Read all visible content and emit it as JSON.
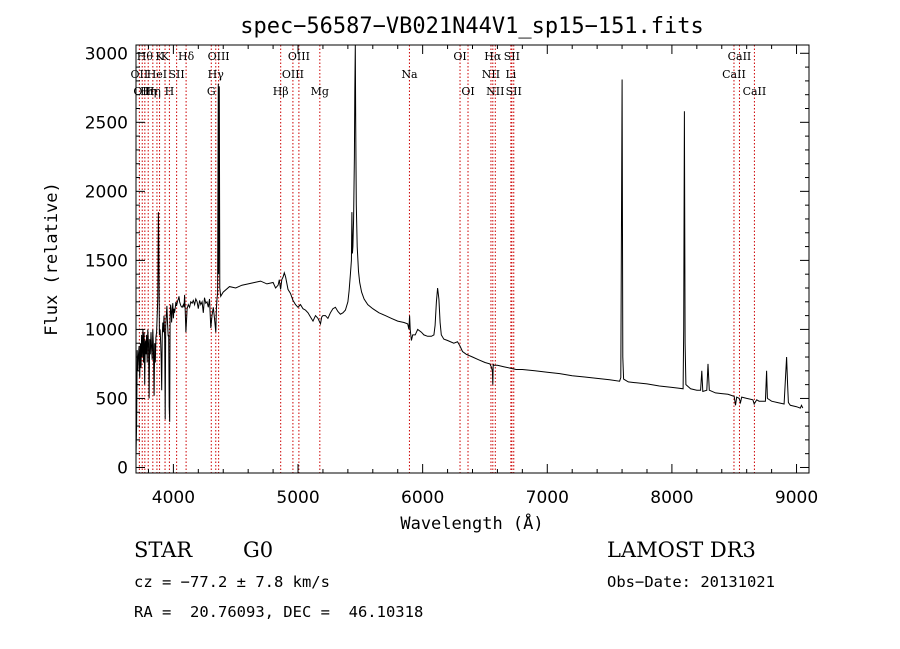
{
  "chart_data": {
    "type": "line",
    "title": "spec−56587−VB021N44V1_sp15−151.fits",
    "xlabel": "Wavelength (Å)",
    "ylabel": "Flux (relative)",
    "xlim": [
      3700,
      9100
    ],
    "ylim": [
      -40,
      3060
    ],
    "xticks": [
      4000,
      5000,
      6000,
      7000,
      8000,
      9000
    ],
    "yticks": [
      0,
      500,
      1000,
      1500,
      2000,
      2500,
      3000
    ],
    "grid": false,
    "series": [
      {
        "values": [
          [
            3700,
            80
          ],
          [
            3705,
            300
          ],
          [
            3710,
            850
          ],
          [
            3715,
            700
          ],
          [
            3720,
            820
          ],
          [
            3725,
            880
          ],
          [
            3730,
            650
          ],
          [
            3735,
            900
          ],
          [
            3740,
            720
          ],
          [
            3745,
            960
          ],
          [
            3750,
            800
          ],
          [
            3755,
            1000
          ],
          [
            3760,
            760
          ],
          [
            3765,
            980
          ],
          [
            3770,
            600
          ],
          [
            3775,
            920
          ],
          [
            3780,
            820
          ],
          [
            3785,
            960
          ],
          [
            3790,
            760
          ],
          [
            3795,
            1000
          ],
          [
            3800,
            900
          ],
          [
            3805,
            500
          ],
          [
            3810,
            930
          ],
          [
            3815,
            820
          ],
          [
            3820,
            980
          ],
          [
            3825,
            860
          ],
          [
            3830,
            780
          ],
          [
            3835,
            1000
          ],
          [
            3840,
            880
          ],
          [
            3845,
            520
          ],
          [
            3850,
            900
          ],
          [
            3855,
            760
          ],
          [
            3860,
            940
          ],
          [
            3865,
            980
          ],
          [
            3870,
            1100
          ],
          [
            3875,
            1230
          ],
          [
            3880,
            1850
          ],
          [
            3884,
            1500
          ],
          [
            3888,
            960
          ],
          [
            3893,
            1000
          ],
          [
            3898,
            900
          ],
          [
            3902,
            780
          ],
          [
            3906,
            560
          ],
          [
            3910,
            940
          ],
          [
            3915,
            1050
          ],
          [
            3920,
            980
          ],
          [
            3925,
            1100
          ],
          [
            3930,
            930
          ],
          [
            3934,
            350
          ],
          [
            3938,
            1020
          ],
          [
            3943,
            1100
          ],
          [
            3948,
            1170
          ],
          [
            3953,
            1050
          ],
          [
            3958,
            950
          ],
          [
            3962,
            960
          ],
          [
            3966,
            440
          ],
          [
            3970,
            330
          ],
          [
            3974,
            1080
          ],
          [
            3978,
            1180
          ],
          [
            3982,
            1150
          ],
          [
            3986,
            1050
          ],
          [
            3990,
            1120
          ],
          [
            3995,
            1190
          ],
          [
            4000,
            1080
          ],
          [
            4005,
            1150
          ],
          [
            4010,
            1120
          ],
          [
            4015,
            1160
          ],
          [
            4020,
            1200
          ],
          [
            4025,
            1170
          ],
          [
            4030,
            1190
          ],
          [
            4035,
            1210
          ],
          [
            4040,
            1220
          ],
          [
            4045,
            1240
          ],
          [
            4050,
            1200
          ],
          [
            4060,
            1170
          ],
          [
            4070,
            1160
          ],
          [
            4080,
            1180
          ],
          [
            4085,
            1160
          ],
          [
            4090,
            1250
          ],
          [
            4095,
            1140
          ],
          [
            4100,
            980
          ],
          [
            4105,
            1060
          ],
          [
            4110,
            1150
          ],
          [
            4120,
            1180
          ],
          [
            4130,
            1160
          ],
          [
            4140,
            1200
          ],
          [
            4150,
            1190
          ],
          [
            4160,
            1210
          ],
          [
            4170,
            1180
          ],
          [
            4180,
            1220
          ],
          [
            4190,
            1200
          ],
          [
            4200,
            1150
          ],
          [
            4210,
            1210
          ],
          [
            4220,
            1180
          ],
          [
            4230,
            1200
          ],
          [
            4240,
            1120
          ],
          [
            4250,
            1230
          ],
          [
            4260,
            1190
          ],
          [
            4270,
            1200
          ],
          [
            4280,
            1160
          ],
          [
            4290,
            1220
          ],
          [
            4300,
            1010
          ],
          [
            4310,
            1100
          ],
          [
            4320,
            1160
          ],
          [
            4330,
            1080
          ],
          [
            4340,
            980
          ],
          [
            4345,
            1150
          ],
          [
            4350,
            1220
          ],
          [
            4355,
            1260
          ],
          [
            4360,
            2780
          ],
          [
            4363,
            1400
          ],
          [
            4368,
            2760
          ],
          [
            4372,
            1300
          ],
          [
            4380,
            1240
          ],
          [
            4400,
            1270
          ],
          [
            4450,
            1310
          ],
          [
            4500,
            1300
          ],
          [
            4550,
            1320
          ],
          [
            4600,
            1330
          ],
          [
            4650,
            1340
          ],
          [
            4700,
            1350
          ],
          [
            4750,
            1330
          ],
          [
            4800,
            1340
          ],
          [
            4820,
            1300
          ],
          [
            4840,
            1320
          ],
          [
            4850,
            1360
          ],
          [
            4860,
            1290
          ],
          [
            4870,
            1360
          ],
          [
            4880,
            1380
          ],
          [
            4890,
            1410
          ],
          [
            4900,
            1380
          ],
          [
            4920,
            1290
          ],
          [
            4940,
            1260
          ],
          [
            4960,
            1210
          ],
          [
            4980,
            1180
          ],
          [
            5000,
            1160
          ],
          [
            5020,
            1180
          ],
          [
            5040,
            1150
          ],
          [
            5060,
            1140
          ],
          [
            5080,
            1120
          ],
          [
            5100,
            1090
          ],
          [
            5120,
            1060
          ],
          [
            5140,
            1100
          ],
          [
            5160,
            1080
          ],
          [
            5170,
            1060
          ],
          [
            5180,
            1040
          ],
          [
            5190,
            1090
          ],
          [
            5200,
            1100
          ],
          [
            5220,
            1100
          ],
          [
            5240,
            1080
          ],
          [
            5260,
            1120
          ],
          [
            5280,
            1150
          ],
          [
            5300,
            1160
          ],
          [
            5320,
            1130
          ],
          [
            5340,
            1110
          ],
          [
            5360,
            1120
          ],
          [
            5380,
            1140
          ],
          [
            5400,
            1200
          ],
          [
            5410,
            1280
          ],
          [
            5420,
            1400
          ],
          [
            5428,
            1500
          ],
          [
            5432,
            1850
          ],
          [
            5436,
            1550
          ],
          [
            5440,
            1600
          ],
          [
            5446,
            1800
          ],
          [
            5452,
            2250
          ],
          [
            5456,
            2720
          ],
          [
            5460,
            3060
          ],
          [
            5463,
            2500
          ],
          [
            5468,
            1900
          ],
          [
            5475,
            1600
          ],
          [
            5485,
            1420
          ],
          [
            5495,
            1340
          ],
          [
            5510,
            1270
          ],
          [
            5530,
            1220
          ],
          [
            5560,
            1180
          ],
          [
            5600,
            1150
          ],
          [
            5650,
            1120
          ],
          [
            5700,
            1100
          ],
          [
            5750,
            1080
          ],
          [
            5800,
            1060
          ],
          [
            5850,
            1050
          ],
          [
            5880,
            1040
          ],
          [
            5890,
            1000
          ],
          [
            5895,
            1100
          ],
          [
            5900,
            1000
          ],
          [
            5910,
            920
          ],
          [
            5920,
            960
          ],
          [
            5940,
            960
          ],
          [
            5960,
            1000
          ],
          [
            5990,
            980
          ],
          [
            6010,
            960
          ],
          [
            6040,
            950
          ],
          [
            6070,
            950
          ],
          [
            6090,
            960
          ],
          [
            6100,
            1030
          ],
          [
            6110,
            1200
          ],
          [
            6120,
            1300
          ],
          [
            6130,
            1220
          ],
          [
            6140,
            1050
          ],
          [
            6150,
            960
          ],
          [
            6170,
            930
          ],
          [
            6200,
            920
          ],
          [
            6250,
            900
          ],
          [
            6280,
            910
          ],
          [
            6300,
            880
          ],
          [
            6320,
            840
          ],
          [
            6350,
            820
          ],
          [
            6400,
            800
          ],
          [
            6450,
            780
          ],
          [
            6500,
            760
          ],
          [
            6540,
            750
          ],
          [
            6550,
            730
          ],
          [
            6560,
            700
          ],
          [
            6563,
            600
          ],
          [
            6566,
            750
          ],
          [
            6570,
            740
          ],
          [
            6600,
            740
          ],
          [
            6650,
            730
          ],
          [
            6700,
            720
          ],
          [
            6750,
            710
          ],
          [
            6800,
            710
          ],
          [
            6900,
            700
          ],
          [
            7000,
            690
          ],
          [
            7100,
            680
          ],
          [
            7200,
            665
          ],
          [
            7300,
            655
          ],
          [
            7400,
            645
          ],
          [
            7500,
            635
          ],
          [
            7580,
            625
          ],
          [
            7590,
            650
          ],
          [
            7600,
            2810
          ],
          [
            7606,
            800
          ],
          [
            7612,
            640
          ],
          [
            7650,
            620
          ],
          [
            7700,
            615
          ],
          [
            7800,
            605
          ],
          [
            7900,
            590
          ],
          [
            8000,
            580
          ],
          [
            8050,
            575
          ],
          [
            8090,
            570
          ],
          [
            8095,
            1000
          ],
          [
            8100,
            2580
          ],
          [
            8106,
            900
          ],
          [
            8112,
            600
          ],
          [
            8150,
            570
          ],
          [
            8200,
            560
          ],
          [
            8230,
            560
          ],
          [
            8240,
            700
          ],
          [
            8248,
            550
          ],
          [
            8280,
            560
          ],
          [
            8290,
            750
          ],
          [
            8300,
            560
          ],
          [
            8350,
            540
          ],
          [
            8400,
            535
          ],
          [
            8450,
            530
          ],
          [
            8500,
            515
          ],
          [
            8510,
            450
          ],
          [
            8520,
            510
          ],
          [
            8540,
            500
          ],
          [
            8550,
            470
          ],
          [
            8560,
            510
          ],
          [
            8600,
            500
          ],
          [
            8650,
            490
          ],
          [
            8660,
            460
          ],
          [
            8680,
            490
          ],
          [
            8700,
            480
          ],
          [
            8750,
            480
          ],
          [
            8760,
            700
          ],
          [
            8766,
            500
          ],
          [
            8800,
            480
          ],
          [
            8850,
            470
          ],
          [
            8900,
            460
          ],
          [
            8920,
            800
          ],
          [
            8928,
            600
          ],
          [
            8935,
            470
          ],
          [
            8950,
            450
          ],
          [
            9000,
            440
          ],
          [
            9030,
            430
          ],
          [
            9040,
            450
          ],
          [
            9050,
            430
          ]
        ]
      }
    ],
    "lines": [
      {
        "w": 3727,
        "label": "OII",
        "row": 1
      },
      {
        "w": 3750,
        "label": "OII",
        "row": 2
      },
      {
        "w": 3771,
        "label": "Hθ",
        "row": 0
      },
      {
        "w": 3798,
        "label": "Hη",
        "row": 2
      },
      {
        "w": 3835,
        "label": "Hη",
        "row": 2
      },
      {
        "w": 3868,
        "label": "HeI",
        "row": 1
      },
      {
        "w": 3889,
        "label": "K",
        "row": 0
      },
      {
        "w": 3933,
        "label": "K",
        "row": 0
      },
      {
        "w": 3968,
        "label": "H",
        "row": 2
      },
      {
        "w": 4026,
        "label": "SII",
        "row": 1
      },
      {
        "w": 4102,
        "label": "Hδ",
        "row": 0
      },
      {
        "w": 4304,
        "label": "G",
        "row": 2
      },
      {
        "w": 4340,
        "label": "Hγ",
        "row": 1
      },
      {
        "w": 4363,
        "label": "OIII",
        "row": 0
      },
      {
        "w": 4861,
        "label": "Hβ",
        "row": 2
      },
      {
        "w": 4959,
        "label": "OIII",
        "row": 1
      },
      {
        "w": 5007,
        "label": "OIII",
        "row": 0
      },
      {
        "w": 5175,
        "label": "Mg",
        "row": 2
      },
      {
        "w": 5894,
        "label": "Na",
        "row": 1
      },
      {
        "w": 6300,
        "label": "OI",
        "row": 0
      },
      {
        "w": 6364,
        "label": "OI",
        "row": 2
      },
      {
        "w": 6548,
        "label": "NII",
        "row": 1
      },
      {
        "w": 6563,
        "label": "Hα",
        "row": 0
      },
      {
        "w": 6583,
        "label": "NII",
        "row": 2
      },
      {
        "w": 6708,
        "label": "Li",
        "row": 1
      },
      {
        "w": 6716,
        "label": "SII",
        "row": 0
      },
      {
        "w": 6731,
        "label": "SII",
        "row": 2
      },
      {
        "w": 8498,
        "label": "CaII",
        "row": 1
      },
      {
        "w": 8542,
        "label": "CaII",
        "row": 0
      },
      {
        "w": 8662,
        "label": "CaII",
        "row": 2
      }
    ]
  },
  "info": {
    "class_label": "STAR",
    "subclass": "G0",
    "survey": "LAMOST DR3",
    "cz": "cz = −77.2 ± 7.8 km/s",
    "obs_date": "Obs−Date: 20131021",
    "radec": "RA =  20.76093, DEC =  46.10318"
  },
  "colors": {
    "spectrum": "#000000",
    "line_marker": "#cc0000",
    "axes": "#000000"
  }
}
